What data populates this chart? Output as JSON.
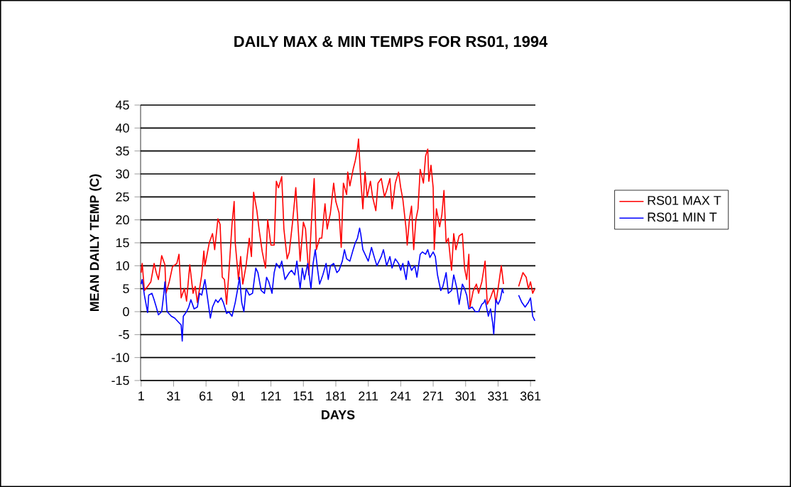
{
  "chart_data": {
    "type": "line",
    "title": "DAILY MAX & MIN TEMPS FOR RS01, 1994",
    "xlabel": "DAYS",
    "ylabel": "MEAN DAILY TEMP (C)",
    "xlim": [
      0.5,
      365.5
    ],
    "xticks": [
      1,
      31,
      61,
      91,
      121,
      151,
      181,
      211,
      241,
      271,
      301,
      331,
      361
    ],
    "ylim": [
      -15,
      45
    ],
    "yticks": [
      -15,
      -10,
      -5,
      0,
      5,
      10,
      15,
      20,
      25,
      30,
      35,
      40,
      45
    ],
    "grid": "y",
    "legend": "right",
    "line_style": "solid",
    "marker": "none",
    "series": [
      {
        "name": "RS01 MAX T",
        "color": "#ff0000",
        "x": [
          1,
          2,
          4,
          7,
          10,
          13,
          15,
          17,
          20,
          23,
          24,
          27,
          30,
          34,
          36,
          38,
          41,
          43,
          46,
          49,
          51,
          53,
          57,
          59,
          60,
          64,
          67,
          69,
          72,
          74,
          76,
          78,
          80,
          82,
          85,
          87,
          88,
          91,
          93,
          95,
          98,
          101,
          103,
          105,
          108,
          110,
          113,
          116,
          118,
          121,
          124,
          126,
          128,
          131,
          133,
          136,
          138,
          141,
          144,
          146,
          148,
          151,
          153,
          156,
          159,
          161,
          163,
          166,
          168,
          171,
          173,
          176,
          179,
          181,
          184,
          186,
          188,
          191,
          192,
          194,
          197,
          199,
          201,
          202,
          204,
          206,
          208,
          210,
          213,
          215,
          218,
          220,
          223,
          226,
          228,
          231,
          233,
          236,
          239,
          241,
          243,
          246,
          247,
          249,
          251,
          253,
          255,
          257,
          259,
          262,
          264,
          266,
          267,
          269,
          271,
          272,
          274,
          277,
          279,
          281,
          283,
          285,
          288,
          290,
          292,
          295,
          298,
          300,
          302,
          304,
          305,
          308,
          311,
          313,
          316,
          319,
          321,
          324,
          327,
          329,
          331,
          334,
          336,
          343,
          350,
          354,
          357,
          359,
          361,
          363,
          365
        ],
        "values": [
          8.5,
          10.5,
          4.6,
          5.5,
          6.5,
          10.5,
          8.5,
          7,
          12.2,
          10.2,
          4,
          6.5,
          9.8,
          10.5,
          12.5,
          3,
          5,
          2.3,
          10.2,
          4,
          5.5,
          2,
          8,
          13.2,
          10,
          15,
          17,
          13.5,
          20.2,
          19,
          7.5,
          7,
          1.6,
          8,
          19,
          24,
          15,
          7,
          12,
          6,
          10,
          16,
          12,
          26,
          22,
          18,
          13,
          9.5,
          20,
          14.5,
          14.5,
          28.4,
          27,
          29.4,
          18,
          11.5,
          13,
          19.5,
          27,
          19,
          11,
          19.5,
          18,
          8,
          22,
          29,
          13.5,
          16,
          16,
          23.5,
          18,
          21.5,
          28,
          24,
          21.5,
          14,
          28,
          25.5,
          30.4,
          27.4,
          31,
          32.9,
          35.4,
          37.6,
          28.9,
          22.4,
          30.4,
          25,
          28.4,
          25,
          22,
          28,
          29,
          25,
          26.4,
          29,
          22.4,
          28,
          30.4,
          27,
          24.4,
          18,
          14.5,
          20,
          23,
          13.5,
          20,
          22.4,
          31,
          28,
          33.9,
          35.4,
          28.4,
          31.9,
          27,
          13.5,
          22.4,
          18.5,
          21,
          26.4,
          15,
          16,
          9,
          17,
          13.5,
          16.5,
          17,
          9.5,
          7,
          12.5,
          1,
          4.5,
          6,
          4,
          6.5,
          11,
          1.6,
          3,
          5,
          2,
          5,
          10,
          6,
          null,
          5.5,
          8.5,
          7.5,
          5,
          6.5,
          4,
          5
        ]
      },
      {
        "name": "RS01 MIN T",
        "color": "#0000ff",
        "x": [
          1,
          2,
          4,
          7,
          8,
          11,
          13,
          15,
          17,
          20,
          22,
          23,
          25,
          29,
          32,
          36,
          38,
          39,
          40,
          43,
          45,
          47,
          50,
          53,
          55,
          57,
          60,
          62,
          65,
          67,
          70,
          72,
          75,
          77,
          80,
          82,
          85,
          88,
          90,
          92,
          94,
          96,
          98,
          101,
          104,
          107,
          109,
          112,
          115,
          117,
          119,
          122,
          124,
          126,
          129,
          131,
          134,
          138,
          140,
          143,
          145,
          148,
          150,
          152,
          155,
          158,
          160,
          162,
          164,
          166,
          169,
          172,
          174,
          176,
          179,
          182,
          184,
          187,
          189,
          191,
          194,
          197,
          199,
          201,
          203,
          204,
          206,
          208,
          211,
          214,
          217,
          219,
          223,
          225,
          228,
          231,
          233,
          236,
          239,
          241,
          243,
          246,
          248,
          251,
          254,
          256,
          259,
          261,
          264,
          266,
          268,
          271,
          273,
          275,
          278,
          280,
          283,
          285,
          288,
          290,
          293,
          295,
          298,
          300,
          302,
          304,
          307,
          310,
          313,
          316,
          318,
          319,
          322,
          324,
          326,
          327,
          329,
          331,
          333,
          335,
          336,
          343,
          350,
          353,
          356,
          359,
          361,
          363,
          365
        ],
        "values": [
          6,
          7,
          3.6,
          -0.2,
          3.6,
          4,
          2.6,
          1,
          -0.7,
          0,
          4,
          6.5,
          0,
          -1,
          -1.4,
          -2.4,
          -2.9,
          -6.4,
          -1,
          0,
          1,
          2.6,
          0.6,
          1,
          4,
          3.6,
          7,
          3.6,
          -1.4,
          1,
          2.6,
          2,
          3,
          2,
          -0.4,
          0,
          -1,
          2,
          4.6,
          7.5,
          2,
          0,
          5,
          3.6,
          4,
          9.5,
          8.5,
          4.6,
          4,
          7.5,
          6.5,
          4,
          8.5,
          10.5,
          9.5,
          11,
          7,
          8.5,
          9,
          8,
          11,
          5,
          9.5,
          7,
          10.5,
          5,
          10.5,
          13.5,
          9.5,
          6,
          8,
          10.5,
          7,
          10,
          10.5,
          8.5,
          9,
          11,
          13.5,
          11.5,
          11,
          13.5,
          15,
          16,
          18.2,
          17,
          13.5,
          12.5,
          11,
          14,
          11.5,
          10,
          12,
          13.5,
          10,
          12,
          9.5,
          11.5,
          10.5,
          9,
          10.5,
          7,
          11,
          9,
          10,
          7.5,
          12.5,
          13,
          12.5,
          13.5,
          11.8,
          13,
          12,
          8,
          4.6,
          5.5,
          8.5,
          4,
          4.6,
          8,
          5,
          1.6,
          6,
          5,
          3.6,
          0.6,
          1,
          0,
          0,
          1.6,
          2,
          2.6,
          -1,
          0.6,
          -2.4,
          -4.9,
          2.6,
          1.6,
          2.6,
          5,
          4,
          null,
          3.6,
          2,
          1,
          2,
          3,
          -1,
          -2
        ]
      }
    ]
  }
}
